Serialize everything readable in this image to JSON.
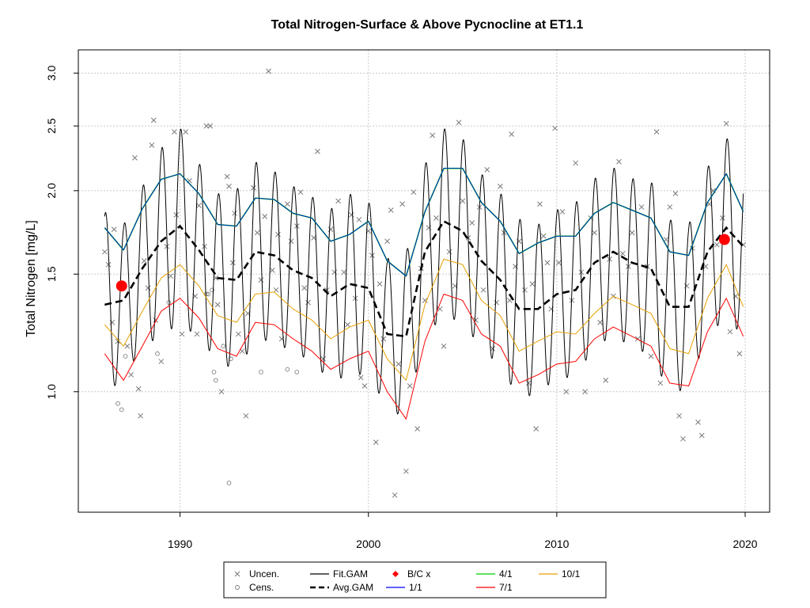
{
  "chart_data": {
    "type": "line",
    "title": "Total Nitrogen-Surface & Above Pycnocline at ET1.1",
    "xlabel": "",
    "ylabel": "Total Nitrogen [mg/L]",
    "y_scale": "log",
    "xlim": [
      1984.6,
      2021.3
    ],
    "ylim": [
      0.66,
      3.25
    ],
    "x_ticks": [
      1990,
      2000,
      2010,
      2020
    ],
    "y_ticks": [
      1.0,
      1.5,
      2.0,
      2.5,
      3.0
    ],
    "y_tick_labels": [
      "1.0",
      "1.5",
      "2.0",
      "2.5",
      "3.0"
    ],
    "grid": true,
    "legend_position": "bottom",
    "legend": [
      {
        "label": "Uncen.",
        "marker": "x",
        "color": "#777777"
      },
      {
        "label": "Cens.",
        "marker": "circle-open",
        "color": "#777777"
      },
      {
        "label": "Fit.GAM",
        "line": "solid",
        "color": "#000000"
      },
      {
        "label": "Avg.GAM",
        "line": "dashed",
        "color": "#000000"
      },
      {
        "label": "B/C x",
        "marker": "diamond",
        "color": "#ff0000"
      },
      {
        "label": "1/1",
        "line": "solid",
        "color": "#0000ff"
      },
      {
        "label": "4/1",
        "line": "solid",
        "color": "#00cc00"
      },
      {
        "label": "7/1",
        "line": "solid",
        "color": "#ff0000"
      },
      {
        "label": "10/1",
        "line": "solid",
        "color": "#e6a000"
      }
    ],
    "series": [
      {
        "name": "Avg.GAM",
        "x": [
          1986,
          1987,
          1988,
          1989,
          1990,
          1991,
          1992,
          1993,
          1994,
          1995,
          1996,
          1997,
          1998,
          1999,
          2000,
          2001,
          2002,
          2003,
          2004,
          2005,
          2006,
          2007,
          2008,
          2009,
          2010,
          2011,
          2012,
          2013,
          2014,
          2015,
          2016,
          2017,
          2018,
          2019,
          2019.9
        ],
        "y": [
          1.35,
          1.37,
          1.53,
          1.68,
          1.77,
          1.63,
          1.48,
          1.47,
          1.62,
          1.6,
          1.52,
          1.48,
          1.39,
          1.45,
          1.43,
          1.22,
          1.21,
          1.62,
          1.8,
          1.74,
          1.57,
          1.47,
          1.33,
          1.33,
          1.4,
          1.42,
          1.56,
          1.62,
          1.56,
          1.53,
          1.34,
          1.34,
          1.62,
          1.76,
          1.65
        ]
      },
      {
        "name": "4/1",
        "x": [
          1986,
          1987,
          1988,
          1989,
          1990,
          1991,
          1992,
          1993,
          1994,
          1995,
          1996,
          1997,
          1998,
          1999,
          2000,
          2001,
          2002,
          2003,
          2004,
          2005,
          2006,
          2007,
          2008,
          2009,
          2010,
          2011,
          2012,
          2013,
          2014,
          2015,
          2016,
          2017,
          2018,
          2019,
          2019.9
        ],
        "y": [
          1.76,
          1.63,
          1.88,
          2.08,
          2.12,
          1.98,
          1.78,
          1.77,
          1.95,
          1.94,
          1.85,
          1.82,
          1.68,
          1.72,
          1.8,
          1.57,
          1.49,
          1.86,
          2.16,
          2.16,
          1.92,
          1.8,
          1.61,
          1.67,
          1.71,
          1.71,
          1.85,
          1.92,
          1.87,
          1.82,
          1.62,
          1.6,
          1.92,
          2.12,
          1.86
        ]
      },
      {
        "name": "1/1",
        "x": [
          1986,
          1987,
          1988,
          1989,
          1990,
          1991,
          1992,
          1993,
          1994,
          1995,
          1996,
          1997,
          1998,
          1999,
          2000,
          2001,
          2002,
          2003,
          2004,
          2005,
          2006,
          2007,
          2008,
          2009,
          2010,
          2011,
          2012,
          2013,
          2014,
          2015,
          2016,
          2017,
          2018,
          2019,
          2019.9
        ],
        "y": [
          1.76,
          1.63,
          1.88,
          2.08,
          2.12,
          1.98,
          1.78,
          1.77,
          1.95,
          1.94,
          1.85,
          1.82,
          1.68,
          1.72,
          1.8,
          1.57,
          1.49,
          1.86,
          2.16,
          2.16,
          1.92,
          1.8,
          1.61,
          1.67,
          1.71,
          1.71,
          1.85,
          1.92,
          1.87,
          1.82,
          1.62,
          1.6,
          1.92,
          2.12,
          1.86
        ]
      },
      {
        "name": "10/1",
        "x": [
          1986,
          1987,
          1988,
          1989,
          1990,
          1991,
          1992,
          1993,
          1994,
          1995,
          1996,
          1997,
          1998,
          1999,
          2000,
          2001,
          2002,
          2003,
          2004,
          2005,
          2006,
          2007,
          2008,
          2009,
          2010,
          2011,
          2012,
          2013,
          2014,
          2015,
          2016,
          2017,
          2018,
          2019,
          2019.9
        ],
        "y": [
          1.26,
          1.17,
          1.32,
          1.48,
          1.55,
          1.44,
          1.3,
          1.27,
          1.4,
          1.41,
          1.33,
          1.28,
          1.2,
          1.25,
          1.28,
          1.12,
          1.04,
          1.35,
          1.58,
          1.55,
          1.37,
          1.3,
          1.15,
          1.19,
          1.23,
          1.22,
          1.31,
          1.39,
          1.35,
          1.31,
          1.16,
          1.14,
          1.38,
          1.55,
          1.34
        ]
      },
      {
        "name": "7/1",
        "x": [
          1986,
          1987,
          1988,
          1989,
          1990,
          1991,
          1992,
          1993,
          1994,
          1995,
          1996,
          1997,
          1998,
          1999,
          2000,
          2001,
          2002,
          2003,
          2004,
          2005,
          2006,
          2007,
          2008,
          2009,
          2010,
          2011,
          2012,
          2013,
          2014,
          2015,
          2016,
          2017,
          2018,
          2019,
          2019.9
        ],
        "y": [
          1.14,
          1.04,
          1.17,
          1.32,
          1.38,
          1.29,
          1.16,
          1.13,
          1.27,
          1.26,
          1.2,
          1.15,
          1.08,
          1.12,
          1.15,
          1.0,
          0.91,
          1.19,
          1.4,
          1.37,
          1.22,
          1.17,
          1.03,
          1.06,
          1.1,
          1.11,
          1.2,
          1.25,
          1.21,
          1.17,
          1.03,
          1.02,
          1.23,
          1.38,
          1.21
        ]
      },
      {
        "name": "B/C x",
        "x": [
          1986.9,
          2018.9
        ],
        "y": [
          1.44,
          1.69
        ]
      }
    ],
    "fit_gam": {
      "start": 1986.0,
      "end": 2019.9,
      "peak_phase": 0.05,
      "amplitude": [
        0.32,
        0.26,
        0.28,
        0.32,
        0.34,
        0.3,
        0.29,
        0.31,
        0.31,
        0.29,
        0.29,
        0.28,
        0.3,
        0.31,
        0.3,
        0.26,
        0.28,
        0.3,
        0.32,
        0.32,
        0.3,
        0.3,
        0.31,
        0.29,
        0.29,
        0.3,
        0.29,
        0.29,
        0.29,
        0.3,
        0.3,
        0.28,
        0.29,
        0.31,
        0.31
      ]
    },
    "uncensored_points": [
      [
        1986.0,
        1.62
      ],
      [
        1986.2,
        1.55
      ],
      [
        1986.4,
        1.27
      ],
      [
        1986.5,
        1.75
      ],
      [
        1986.7,
        1.19
      ],
      [
        1987.2,
        1.17
      ],
      [
        1987.4,
        1.06
      ],
      [
        1987.6,
        2.24
      ],
      [
        1987.8,
        1.01
      ],
      [
        1987.9,
        0.92
      ],
      [
        1988.1,
        1.57
      ],
      [
        1988.3,
        1.43
      ],
      [
        1988.5,
        2.34
      ],
      [
        1988.6,
        2.55
      ],
      [
        1988.7,
        1.28
      ],
      [
        1989.0,
        1.11
      ],
      [
        1989.3,
        1.65
      ],
      [
        1989.5,
        1.49
      ],
      [
        1989.7,
        2.45
      ],
      [
        1989.8,
        1.84
      ],
      [
        1990.1,
        1.22
      ],
      [
        1990.3,
        2.45
      ],
      [
        1990.5,
        2.07
      ],
      [
        1990.8,
        1.39
      ],
      [
        1990.9,
        1.22
      ],
      [
        1991.0,
        1.9
      ],
      [
        1991.3,
        1.65
      ],
      [
        1991.4,
        2.5
      ],
      [
        1991.6,
        2.5
      ],
      [
        1991.9,
        1.48
      ],
      [
        1992.0,
        1.35
      ],
      [
        1992.2,
        1.0
      ],
      [
        1992.5,
        2.1
      ],
      [
        1992.6,
        2.03
      ],
      [
        1992.8,
        1.56
      ],
      [
        1992.9,
        1.85
      ],
      [
        1993.1,
        1.22
      ],
      [
        1993.3,
        1.15
      ],
      [
        1993.5,
        0.92
      ],
      [
        1993.6,
        1.31
      ],
      [
        1993.9,
        2.02
      ],
      [
        1994.1,
        1.73
      ],
      [
        1994.3,
        1.47
      ],
      [
        1994.5,
        1.83
      ],
      [
        1994.7,
        3.02
      ],
      [
        1994.9,
        1.52
      ],
      [
        1995.1,
        1.42
      ],
      [
        1995.2,
        1.72
      ],
      [
        1995.4,
        1.2
      ],
      [
        1995.7,
        1.91
      ],
      [
        1995.9,
        1.68
      ],
      [
        1996.2,
        1.77
      ],
      [
        1996.4,
        1.99
      ],
      [
        1996.6,
        1.43
      ],
      [
        1996.8,
        1.36
      ],
      [
        1997.1,
        1.7
      ],
      [
        1997.3,
        2.29
      ],
      [
        1997.6,
        1.12
      ],
      [
        1997.8,
        1.42
      ],
      [
        1998.0,
        1.75
      ],
      [
        1998.2,
        1.51
      ],
      [
        1998.4,
        1.93
      ],
      [
        1998.7,
        1.51
      ],
      [
        1998.9,
        1.26
      ],
      [
        1999.1,
        1.84
      ],
      [
        1999.3,
        1.38
      ],
      [
        1999.5,
        1.81
      ],
      [
        1999.6,
        1.05
      ],
      [
        1999.8,
        1.02
      ],
      [
        2000.0,
        1.74
      ],
      [
        2000.2,
        1.6
      ],
      [
        2000.4,
        0.84
      ],
      [
        2000.6,
        1.45
      ],
      [
        2000.8,
        1.2
      ],
      [
        2001.0,
        1.68
      ],
      [
        2001.2,
        1.87
      ],
      [
        2001.4,
        0.7
      ],
      [
        2001.6,
        1.1
      ],
      [
        2001.8,
        1.91
      ],
      [
        2002.0,
        0.76
      ],
      [
        2002.2,
        1.02
      ],
      [
        2002.4,
        1.99
      ],
      [
        2002.6,
        0.88
      ],
      [
        2002.8,
        1.53
      ],
      [
        2003.0,
        1.37
      ],
      [
        2003.2,
        1.76
      ],
      [
        2003.4,
        2.42
      ],
      [
        2003.6,
        1.82
      ],
      [
        2003.8,
        1.33
      ],
      [
        2004.0,
        1.17
      ],
      [
        2004.3,
        1.62
      ],
      [
        2004.6,
        1.44
      ],
      [
        2004.8,
        2.53
      ],
      [
        2005.0,
        1.93
      ],
      [
        2005.3,
        1.7
      ],
      [
        2005.5,
        1.79
      ],
      [
        2005.7,
        1.28
      ],
      [
        2005.9,
        1.89
      ],
      [
        2006.1,
        1.42
      ],
      [
        2006.3,
        2.15
      ],
      [
        2006.6,
        1.16
      ],
      [
        2006.8,
        1.36
      ],
      [
        2007.0,
        2.03
      ],
      [
        2007.2,
        1.73
      ],
      [
        2007.5,
        1.37
      ],
      [
        2007.6,
        2.43
      ],
      [
        2007.8,
        1.54
      ],
      [
        2008.0,
        1.68
      ],
      [
        2008.3,
        1.42
      ],
      [
        2008.5,
        1.03
      ],
      [
        2008.7,
        1.45
      ],
      [
        2008.9,
        0.88
      ],
      [
        2009.1,
        1.91
      ],
      [
        2009.3,
        1.71
      ],
      [
        2009.5,
        1.56
      ],
      [
        2009.7,
        1.33
      ],
      [
        2009.9,
        2.48
      ],
      [
        2010.1,
        1.56
      ],
      [
        2010.3,
        1.86
      ],
      [
        2010.5,
        1.0
      ],
      [
        2010.8,
        1.37
      ],
      [
        2011.0,
        2.2
      ],
      [
        2011.3,
        1.51
      ],
      [
        2011.5,
        1.0
      ],
      [
        2011.8,
        1.82
      ],
      [
        2012.0,
        1.73
      ],
      [
        2012.3,
        1.27
      ],
      [
        2012.6,
        1.04
      ],
      [
        2012.8,
        1.58
      ],
      [
        2013.0,
        1.39
      ],
      [
        2013.3,
        2.21
      ],
      [
        2013.5,
        1.61
      ],
      [
        2013.8,
        1.54
      ],
      [
        2014.0,
        1.73
      ],
      [
        2014.3,
        1.2
      ],
      [
        2014.5,
        1.89
      ],
      [
        2014.8,
        1.54
      ],
      [
        2015.0,
        1.13
      ],
      [
        2015.3,
        2.45
      ],
      [
        2015.5,
        1.03
      ],
      [
        2015.8,
        1.69
      ],
      [
        2016.0,
        1.89
      ],
      [
        2016.3,
        1.98
      ],
      [
        2016.5,
        0.92
      ],
      [
        2016.7,
        0.85
      ],
      [
        2016.9,
        1.44
      ],
      [
        2017.2,
        1.64
      ],
      [
        2017.5,
        0.9
      ],
      [
        2017.7,
        0.86
      ],
      [
        2017.9,
        1.54
      ],
      [
        2018.1,
        1.91
      ],
      [
        2018.3,
        2.0
      ],
      [
        2018.5,
        1.66
      ],
      [
        2018.8,
        1.82
      ],
      [
        2019.0,
        2.52
      ],
      [
        2019.2,
        1.23
      ],
      [
        2019.5,
        1.39
      ],
      [
        2019.7,
        1.14
      ],
      [
        2019.9,
        1.66
      ]
    ],
    "censored_points": [
      [
        1986.7,
        0.96
      ],
      [
        1986.9,
        0.94
      ],
      [
        1987.1,
        1.13
      ],
      [
        1988.8,
        1.14
      ],
      [
        1989.4,
        1.36
      ],
      [
        1991.4,
        1.4
      ],
      [
        1991.5,
        1.4
      ],
      [
        1991.7,
        1.42
      ],
      [
        1991.8,
        1.07
      ],
      [
        1991.9,
        1.04
      ],
      [
        1992.3,
        1.17
      ],
      [
        1992.6,
        0.73
      ],
      [
        1992.7,
        1.12
      ],
      [
        1994.3,
        1.07
      ],
      [
        1995.7,
        1.08
      ],
      [
        1996.2,
        1.07
      ]
    ]
  }
}
